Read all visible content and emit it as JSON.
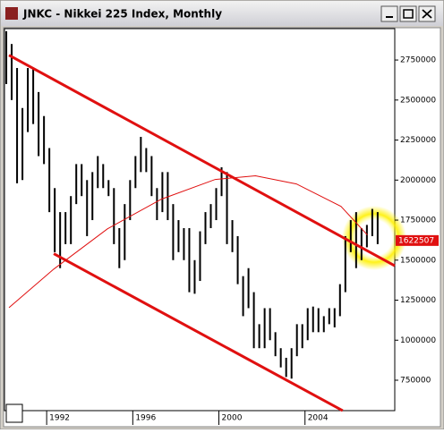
{
  "window": {
    "title": "JNKC - Nikkei 225 Index, Monthly"
  },
  "chart_data": {
    "type": "hilo",
    "x": [
      1990.125,
      1990.375,
      1990.625,
      1990.875,
      1991.125,
      1991.375,
      1991.625,
      1991.875,
      1992.125,
      1992.375,
      1992.625,
      1992.875,
      1993.125,
      1993.375,
      1993.625,
      1993.875,
      1994.125,
      1994.375,
      1994.625,
      1994.875,
      1995.125,
      1995.375,
      1995.625,
      1995.875,
      1996.125,
      1996.375,
      1996.625,
      1996.875,
      1997.125,
      1997.375,
      1997.625,
      1997.875,
      1998.125,
      1998.375,
      1998.625,
      1998.875,
      1999.125,
      1999.375,
      1999.625,
      1999.875,
      2000.125,
      2000.375,
      2000.625,
      2000.875,
      2001.125,
      2001.375,
      2001.625,
      2001.875,
      2002.125,
      2002.375,
      2002.625,
      2002.875,
      2003.125,
      2003.375,
      2003.625,
      2003.875,
      2004.125,
      2004.375,
      2004.625,
      2004.875,
      2005.125,
      2005.375,
      2005.625,
      2005.875,
      2006.125,
      2006.375,
      2006.625,
      2006.875,
      2007.125,
      2007.375
    ],
    "high": [
      2930000,
      2850000,
      2700000,
      2450000,
      2700000,
      2700000,
      2550000,
      2400000,
      2200000,
      1950000,
      1800000,
      1800000,
      1900000,
      2100000,
      2100000,
      2000000,
      2050000,
      2150000,
      2100000,
      2000000,
      1950000,
      1700000,
      1850000,
      2000000,
      2150000,
      2270000,
      2200000,
      2150000,
      1950000,
      2050000,
      2050000,
      1850000,
      1750000,
      1700000,
      1700000,
      1500000,
      1680000,
      1800000,
      1850000,
      1950000,
      2080000,
      2050000,
      1750000,
      1650000,
      1400000,
      1450000,
      1300000,
      1100000,
      1200000,
      1200000,
      1050000,
      950000,
      890000,
      950000,
      1100000,
      1100000,
      1200000,
      1210000,
      1200000,
      1150000,
      1200000,
      1200000,
      1350000,
      1650000,
      1750000,
      1800000,
      1700000,
      1720000,
      1820000,
      1800000
    ],
    "low": [
      2600000,
      2500000,
      1980000,
      2000000,
      2300000,
      2350000,
      2150000,
      2100000,
      1800000,
      1550000,
      1450000,
      1600000,
      1600000,
      1850000,
      1900000,
      1650000,
      1750000,
      1950000,
      1950000,
      1900000,
      1600000,
      1450000,
      1500000,
      1750000,
      1950000,
      2050000,
      2050000,
      1900000,
      1750000,
      1800000,
      1750000,
      1500000,
      1550000,
      1500000,
      1300000,
      1290000,
      1370000,
      1600000,
      1700000,
      1750000,
      1900000,
      1600000,
      1550000,
      1350000,
      1150000,
      1200000,
      950000,
      950000,
      950000,
      1000000,
      900000,
      830000,
      770000,
      760000,
      900000,
      950000,
      1000000,
      1050000,
      1050000,
      1050000,
      1100000,
      1080000,
      1150000,
      1300000,
      1550000,
      1450000,
      1500000,
      1580000,
      1650000,
      1600000
    ],
    "color": "#000000",
    "last_value": 1622507,
    "trendlines": [
      {
        "x": [
          1990.25,
          2008.17
        ],
        "y": [
          2780000,
          1465000
        ]
      },
      {
        "x": [
          1992.33,
          2005.75
        ],
        "y": [
          1540000,
          560000
        ]
      }
    ],
    "trend_color": "#e01010",
    "ma": {
      "x": [
        1990.25,
        1992.33,
        1994.83,
        1997.33,
        1999.83,
        2001.7,
        2003.6,
        2005.67,
        2006.9
      ],
      "y": [
        1203000,
        1444000,
        1696000,
        1881000,
        2004000,
        2027000,
        1976000,
        1836000,
        1657000
      ]
    },
    "xlim": [
      1990.04,
      2008.17
    ],
    "ylim": [
      560000,
      2946000
    ],
    "xticks": [
      1992,
      1996,
      2000,
      2004
    ],
    "yticks": [
      750000,
      1000000,
      1250000,
      1500000,
      1750000,
      2000000,
      2250000,
      2500000,
      2750000
    ]
  }
}
